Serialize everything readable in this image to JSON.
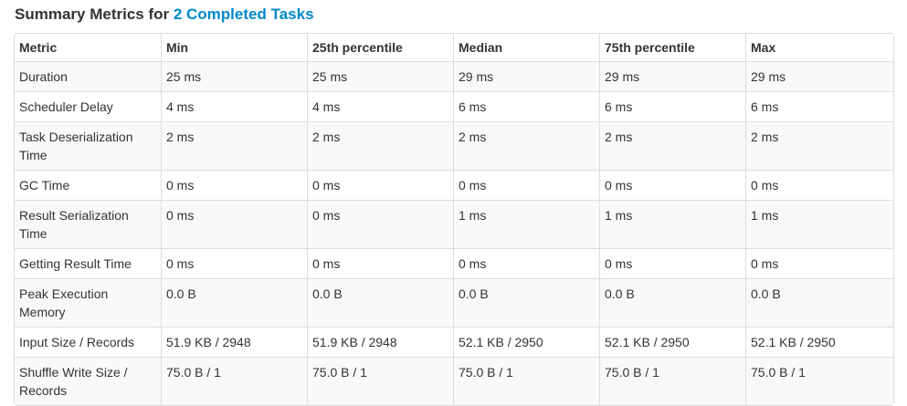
{
  "heading": {
    "prefix": "Summary Metrics for ",
    "link_text": "2 Completed Tasks"
  },
  "table": {
    "columns": [
      "Metric",
      "Min",
      "25th percentile",
      "Median",
      "75th percentile",
      "Max"
    ],
    "rows": [
      [
        "Duration",
        "25 ms",
        "25 ms",
        "29 ms",
        "29 ms",
        "29 ms"
      ],
      [
        "Scheduler Delay",
        "4 ms",
        "4 ms",
        "6 ms",
        "6 ms",
        "6 ms"
      ],
      [
        "Task Deserialization Time",
        "2 ms",
        "2 ms",
        "2 ms",
        "2 ms",
        "2 ms"
      ],
      [
        "GC Time",
        "0 ms",
        "0 ms",
        "0 ms",
        "0 ms",
        "0 ms"
      ],
      [
        "Result Serialization Time",
        "0 ms",
        "0 ms",
        "1 ms",
        "1 ms",
        "1 ms"
      ],
      [
        "Getting Result Time",
        "0 ms",
        "0 ms",
        "0 ms",
        "0 ms",
        "0 ms"
      ],
      [
        "Peak Execution Memory",
        "0.0 B",
        "0.0 B",
        "0.0 B",
        "0.0 B",
        "0.0 B"
      ],
      [
        "Input Size / Records",
        "51.9 KB / 2948",
        "51.9 KB / 2948",
        "52.1 KB / 2950",
        "52.1 KB / 2950",
        "52.1 KB / 2950"
      ],
      [
        "Shuffle Write Size / Records",
        "75.0 B / 1",
        "75.0 B / 1",
        "75.0 B / 1",
        "75.0 B / 1",
        "75.0 B / 1"
      ]
    ]
  },
  "colors": {
    "link": "#0088cc",
    "text": "#333333",
    "border": "#dddddd",
    "stripe": "#f9f9f9"
  }
}
